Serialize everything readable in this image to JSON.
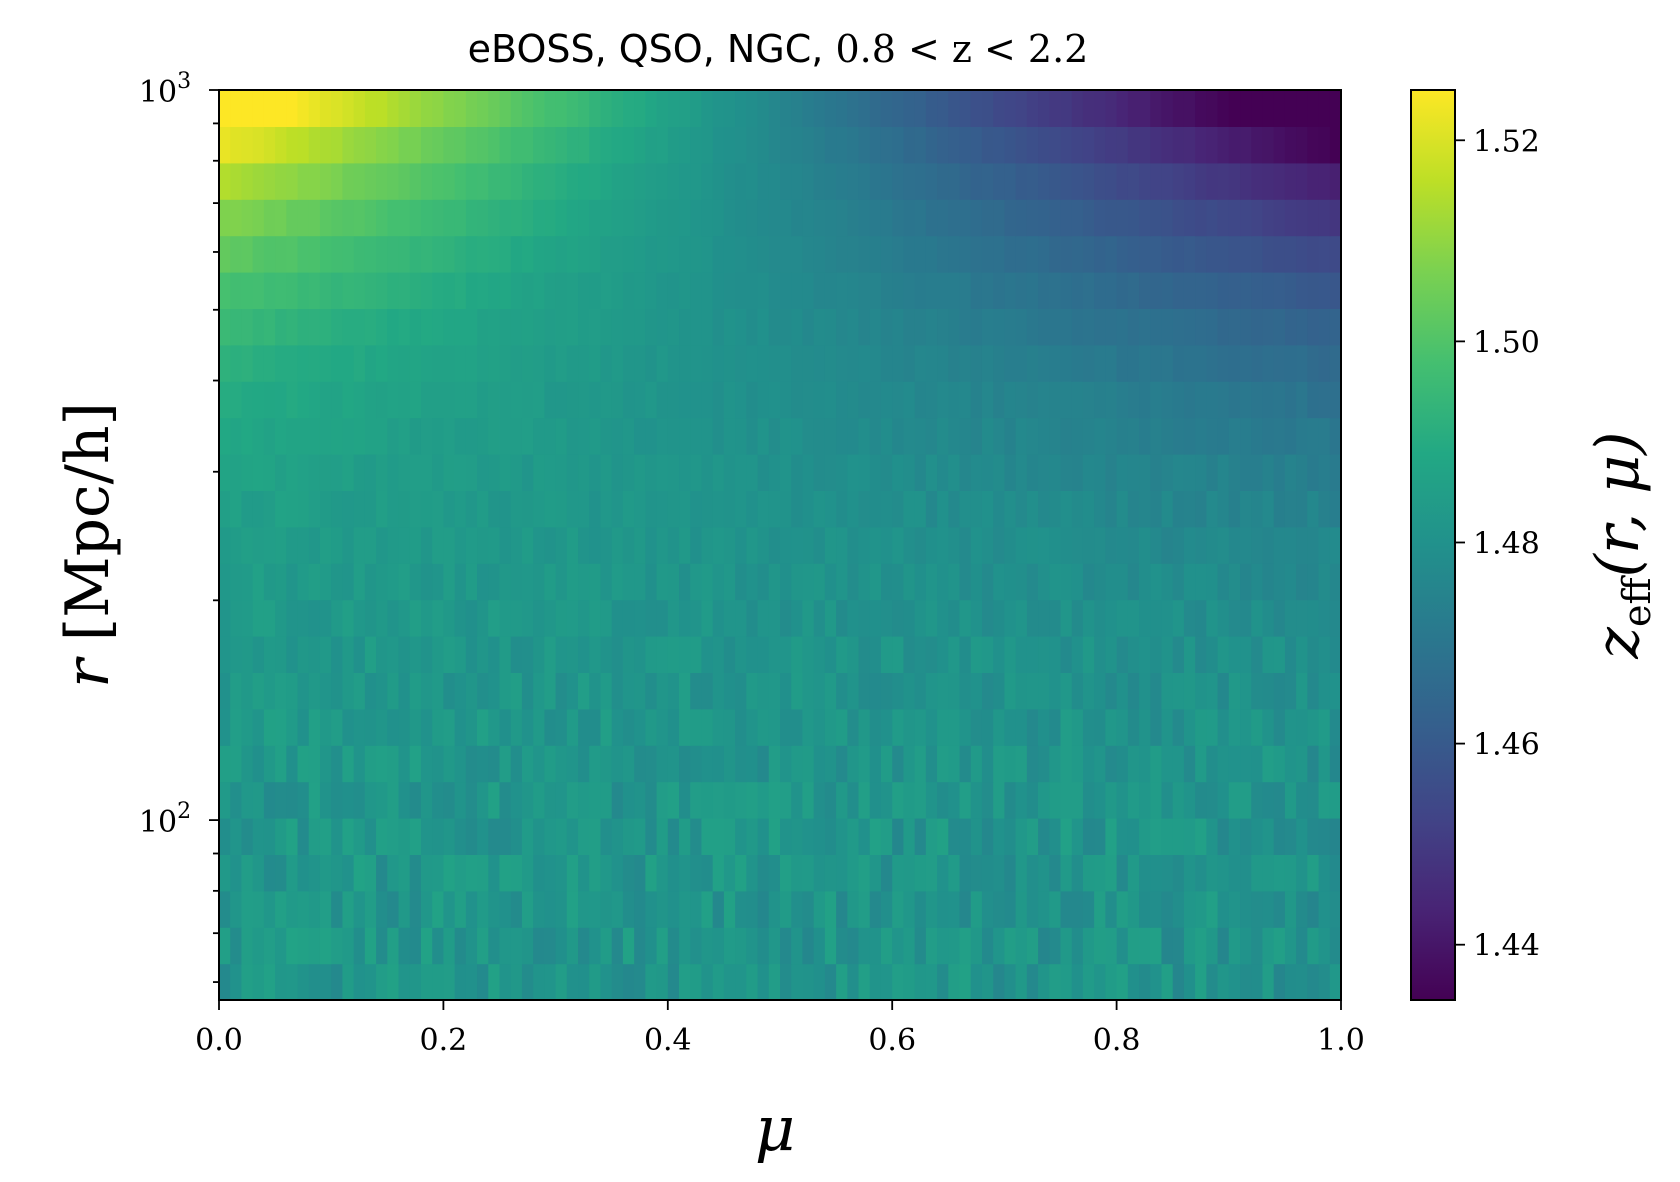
{
  "chart_data": {
    "type": "heatmap",
    "title": {
      "prefix": "eBOSS, QSO, NGC, ",
      "math": "0.8 < z < 2.2"
    },
    "xlabel": "μ",
    "ylabel": {
      "var": "r",
      "unit": "[Mpc/h]"
    },
    "colorbar_label": {
      "base": "z",
      "sub": "eff",
      "args": "(r, μ)"
    },
    "xlim": [
      0.0,
      1.0
    ],
    "ylim": [
      56.7,
      1000
    ],
    "y_scale": "log",
    "x_ticks": [
      "0.0",
      "0.2",
      "0.4",
      "0.6",
      "0.8",
      "1.0"
    ],
    "y_ticks": [
      {
        "base": "10",
        "exp": "2",
        "value": 100
      },
      {
        "base": "10",
        "exp": "3",
        "value": 1000
      }
    ],
    "n_mu_bins": 100,
    "n_r_bins": 25,
    "r_bin_edges_log10": [
      1.7536,
      2.0,
      2.99
    ],
    "colormap": "viridis",
    "clim": [
      1.4345,
      1.525
    ],
    "colorbar_ticks": [
      "1.44",
      "1.46",
      "1.48",
      "1.50",
      "1.52"
    ],
    "z_eff_approx": {
      "description_points": [
        {
          "mu": 0.0,
          "r": 60,
          "z": 1.484
        },
        {
          "mu": 0.5,
          "r": 60,
          "z": 1.482
        },
        {
          "mu": 1.0,
          "r": 60,
          "z": 1.481
        },
        {
          "mu": 0.0,
          "r": 200,
          "z": 1.484
        },
        {
          "mu": 1.0,
          "r": 200,
          "z": 1.47
        },
        {
          "mu": 0.0,
          "r": 500,
          "z": 1.495
        },
        {
          "mu": 1.0,
          "r": 500,
          "z": 1.455
        },
        {
          "mu": 0.0,
          "r": 950,
          "z": 1.524
        },
        {
          "mu": 0.5,
          "r": 950,
          "z": 1.478
        },
        {
          "mu": 1.0,
          "r": 950,
          "z": 1.435
        }
      ]
    }
  }
}
